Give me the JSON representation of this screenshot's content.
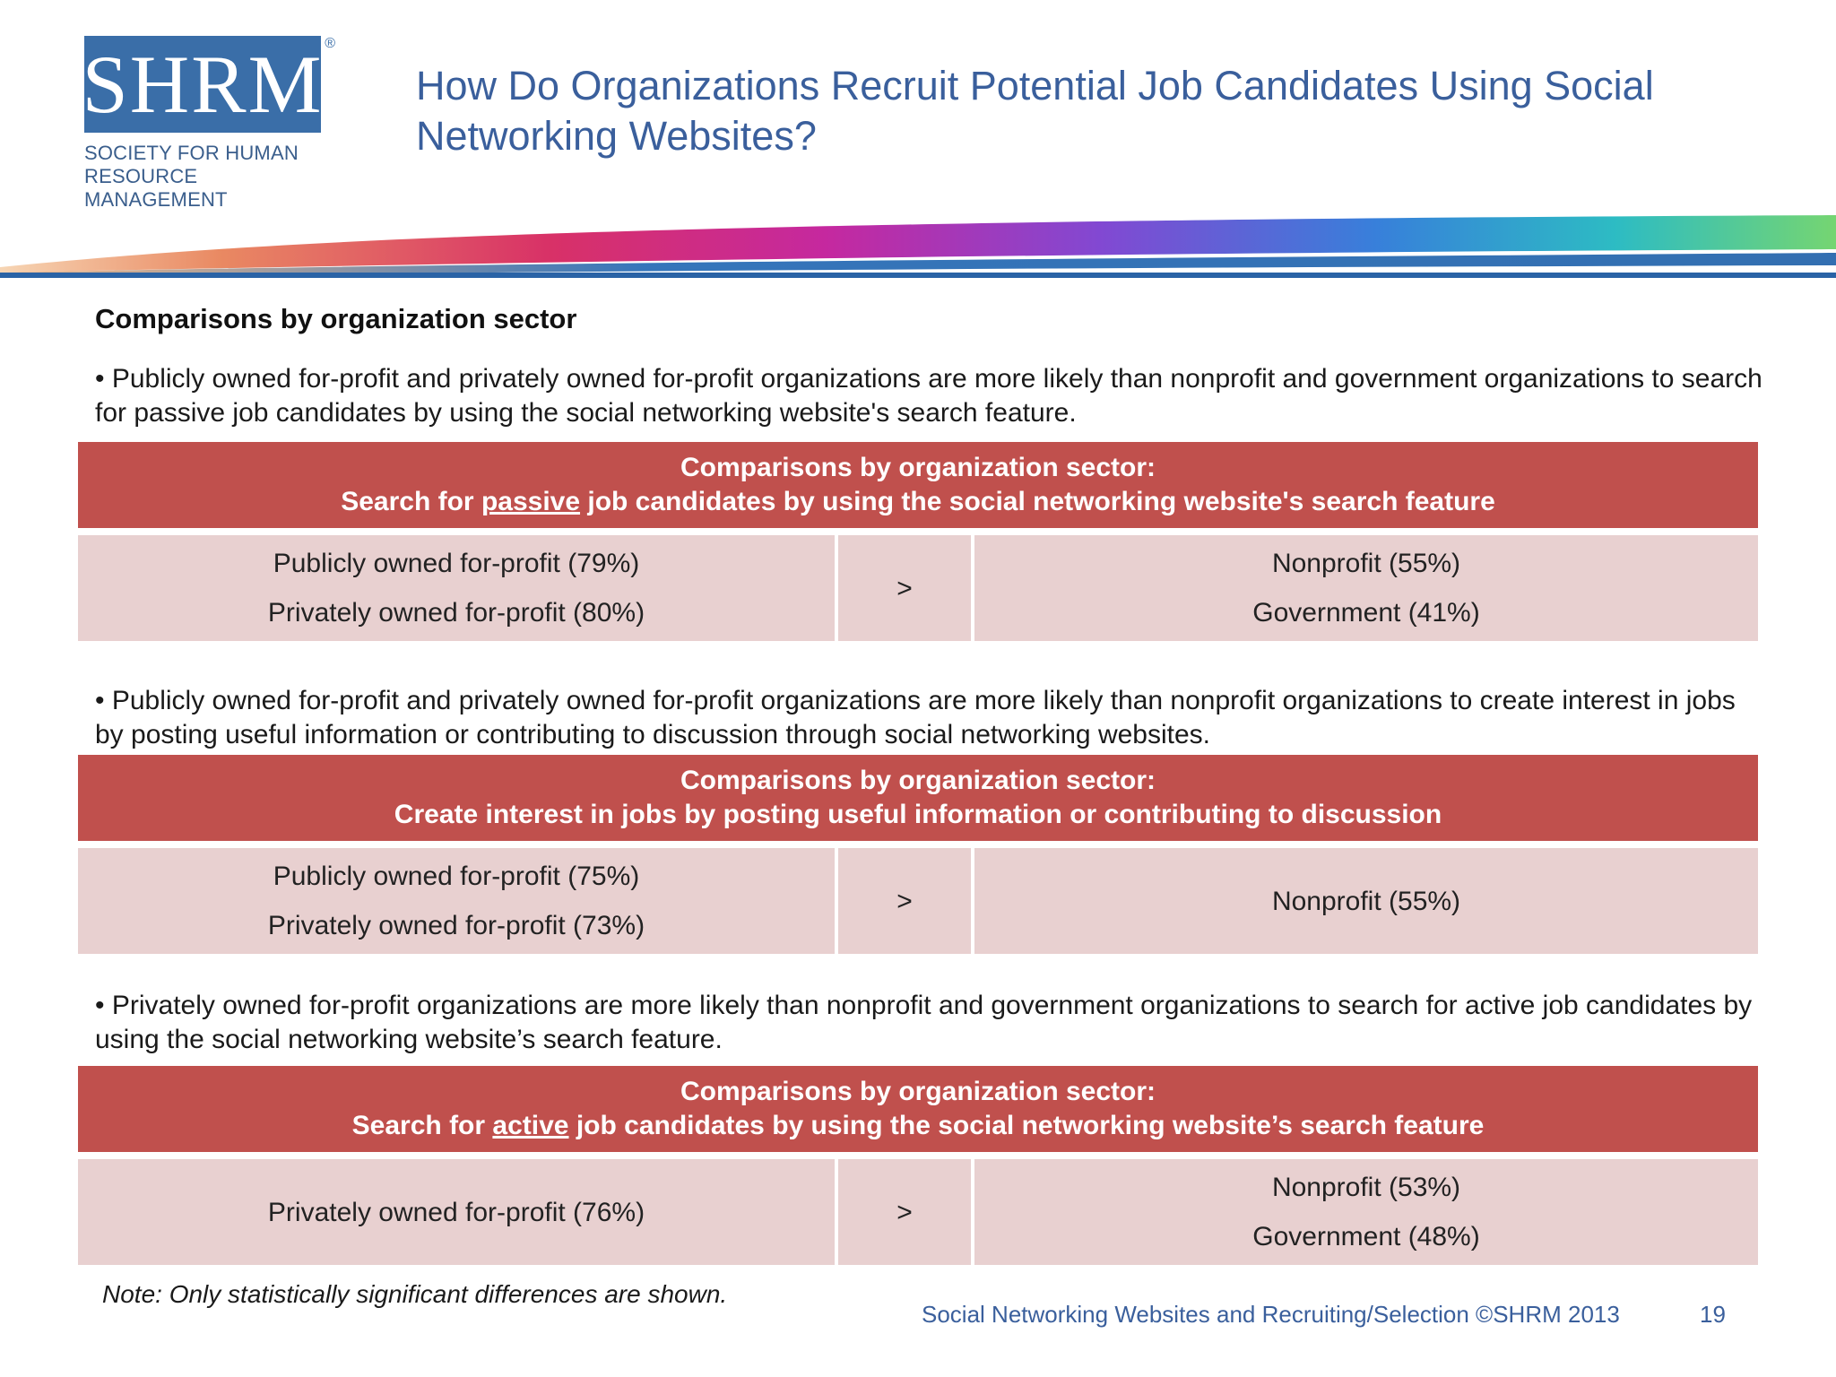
{
  "logo": {
    "word": "SHRM",
    "registered": "®",
    "subtitle_line1": "SOCIETY FOR HUMAN",
    "subtitle_line2": "RESOURCE MANAGEMENT"
  },
  "title": "How Do Organizations Recruit Potential Job Candidates Using Social Networking Websites?",
  "section_heading": "Comparisons by organization sector",
  "blocks": [
    {
      "bullet": "• Publicly owned for-profit and privately owned for-profit organizations are more likely than nonprofit and government organizations to search for passive job candidates by using the social networking website's search feature.",
      "header_line1": "Comparisons by organization sector:",
      "header_line2_pre": "Search for ",
      "header_line2_u": "passive",
      "header_line2_post": " job candidates by using the social networking website's search feature",
      "left": [
        "Publicly owned for-profit (79%)",
        "Privately owned for-profit (80%)"
      ],
      "operator": ">",
      "right": [
        "Nonprofit (55%)",
        "Government (41%)"
      ]
    },
    {
      "bullet": "• Publicly owned for-profit and privately owned for-profit organizations are more likely than nonprofit organizations to create interest in jobs by posting useful information or contributing to discussion through social networking websites.",
      "header_line1": "Comparisons by organization sector:",
      "header_line2": "Create interest in jobs by posting useful information or contributing to discussion",
      "left": [
        "Publicly owned for-profit (75%)",
        "Privately owned for-profit (73%)"
      ],
      "operator": ">",
      "right": [
        "Nonprofit (55%)"
      ]
    },
    {
      "bullet": "• Privately owned for-profit organizations are more likely than nonprofit and government organizations to search for active job candidates by using the social networking website’s search feature.",
      "header_line1": "Comparisons by organization sector:",
      "header_line2_pre": "Search for ",
      "header_line2_u": "active",
      "header_line2_post": " job candidates by using the social networking website’s search feature",
      "left": [
        "Privately owned for-profit (76%)"
      ],
      "operator": ">",
      "right": [
        "Nonprofit (53%)",
        "Government (48%)"
      ]
    }
  ],
  "note": "Note: Only statistically significant differences are shown.",
  "footer": "Social Networking Websites and Recruiting/Selection ©SHRM 2013",
  "page_number": "19"
}
